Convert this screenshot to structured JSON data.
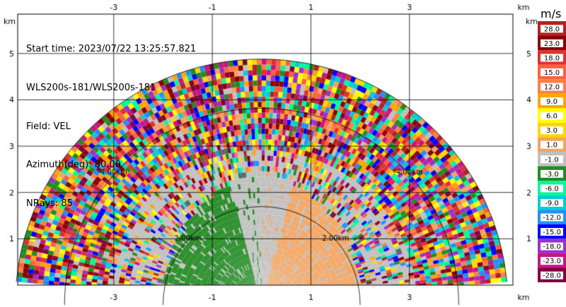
{
  "info": {
    "start_time": "Start time: 2023/07/22 13:25:57.821",
    "instrument": "WLS200s-181/WLS200s-181",
    "field": "Field: VEL",
    "azimuth": "Azimuth(deg): 80.00",
    "nrays": "NRays: 85"
  },
  "axis": {
    "unit": "km",
    "x_ticks": [
      "-3",
      "-1",
      "1",
      "3"
    ],
    "y_ticks": [
      "1",
      "2",
      "3",
      "4",
      "5"
    ]
  },
  "range_rings": [
    "2.00km",
    "4.00km"
  ],
  "colorbar": {
    "unit": "m/s",
    "levels": [
      "28.0",
      "23.0",
      "18.0",
      "15.0",
      "12.0",
      "9.0",
      "6.0",
      "3.0",
      "1.0",
      "-1.0",
      "-3.0",
      "-6.0",
      "-9.0",
      "-12.0",
      "-15.0",
      "-18.0",
      "-23.0",
      "-28.0"
    ],
    "colors": [
      "#b22222",
      "#8b0000",
      "#e03030",
      "#ff6040",
      "#ff8040",
      "#ffa500",
      "#ffff00",
      "#ffd700",
      "#f4a460",
      "#c0c0c0",
      "#228b22",
      "#00fa9a",
      "#00ced1",
      "#1e90ff",
      "#0000ff",
      "#9932cc",
      "#c71585",
      "#800040"
    ]
  },
  "chart_data": {
    "type": "heatmap",
    "title": "",
    "xlabel": "km",
    "ylabel": "km",
    "xlim": [
      -4.95,
      5.1
    ],
    "ylim": [
      0,
      5.85
    ],
    "x_ticks": [
      -3,
      -1,
      1,
      3
    ],
    "y_ticks": [
      1,
      2,
      3,
      4,
      5
    ],
    "sweep": {
      "type": "RHI-like semicircle",
      "max_range_km": 5.0,
      "range_rings_km": [
        2.0,
        4.0
      ]
    },
    "description_values": "radial velocity field in m/s, noisy mosaic beyond ~2.5 km",
    "near_field_pattern": [
      {
        "sector": "left-center",
        "value_ms": -2.0
      },
      {
        "sector": "center",
        "value_ms": 0.0
      },
      {
        "sector": "right-center",
        "value_ms": 2.0
      }
    ]
  }
}
